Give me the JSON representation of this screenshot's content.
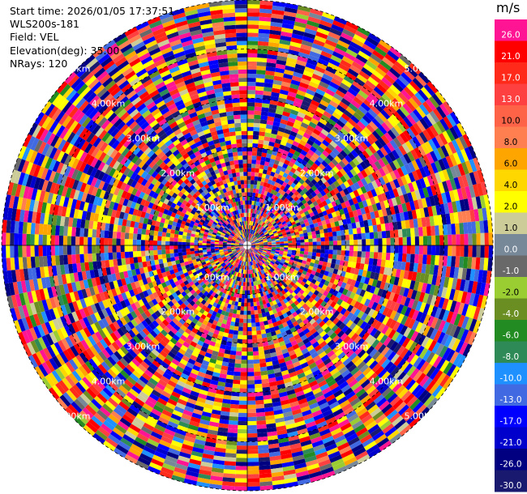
{
  "header": {
    "start_time": "Start time: 2026/01/05 17:37:51",
    "instrument": "WLS200s-181",
    "field": "Field: VEL",
    "elevation": "Elevation(deg): 35.00",
    "nrays": "NRays: 120"
  },
  "colorbar": {
    "unit": "m/s",
    "levels": [
      {
        "label": "26.0",
        "color": "#ff1493"
      },
      {
        "label": "21.0",
        "color": "#ff0000"
      },
      {
        "label": "17.0",
        "color": "#ff2a1a"
      },
      {
        "label": "13.0",
        "color": "#ff4040"
      },
      {
        "label": "10.0",
        "color": "#ff6347"
      },
      {
        "label": "8.0",
        "color": "#ff7f50"
      },
      {
        "label": "6.0",
        "color": "#ffa500"
      },
      {
        "label": "4.0",
        "color": "#ffd700"
      },
      {
        "label": "2.0",
        "color": "#ffff00"
      },
      {
        "label": "1.0",
        "color": "#cccc99"
      },
      {
        "label": "0.0",
        "color": "#778899"
      },
      {
        "label": "-1.0",
        "color": "#696969"
      },
      {
        "label": "-2.0",
        "color": "#9acd32"
      },
      {
        "label": "-4.0",
        "color": "#6b8e23"
      },
      {
        "label": "-6.0",
        "color": "#228b22"
      },
      {
        "label": "-8.0",
        "color": "#2e8b57"
      },
      {
        "label": "-10.0",
        "color": "#1e90ff"
      },
      {
        "label": "-13.0",
        "color": "#4169e1"
      },
      {
        "label": "-17.0",
        "color": "#0000ff"
      },
      {
        "label": "-21.0",
        "color": "#0000cd"
      },
      {
        "label": "-26.0",
        "color": "#000080"
      },
      {
        "label": "-30.0",
        "color": "#191970"
      }
    ]
  },
  "chart_data": {
    "type": "heatmap",
    "plot_type": "PPI",
    "field": "VEL",
    "elevation_deg": 35.0,
    "n_rays": 120,
    "n_gates_drawn": 60,
    "max_range_km": 5.0,
    "range_rings_km": [
      1,
      2,
      3,
      4,
      5
    ],
    "ring_labels": [
      "1.00km",
      "2.00km",
      "3.00km",
      "4.00km",
      "5.00km"
    ],
    "value_note": "radial velocity field appears noisy; values span the full colorbar range",
    "vmin": -30.0,
    "vmax": 26.0
  }
}
